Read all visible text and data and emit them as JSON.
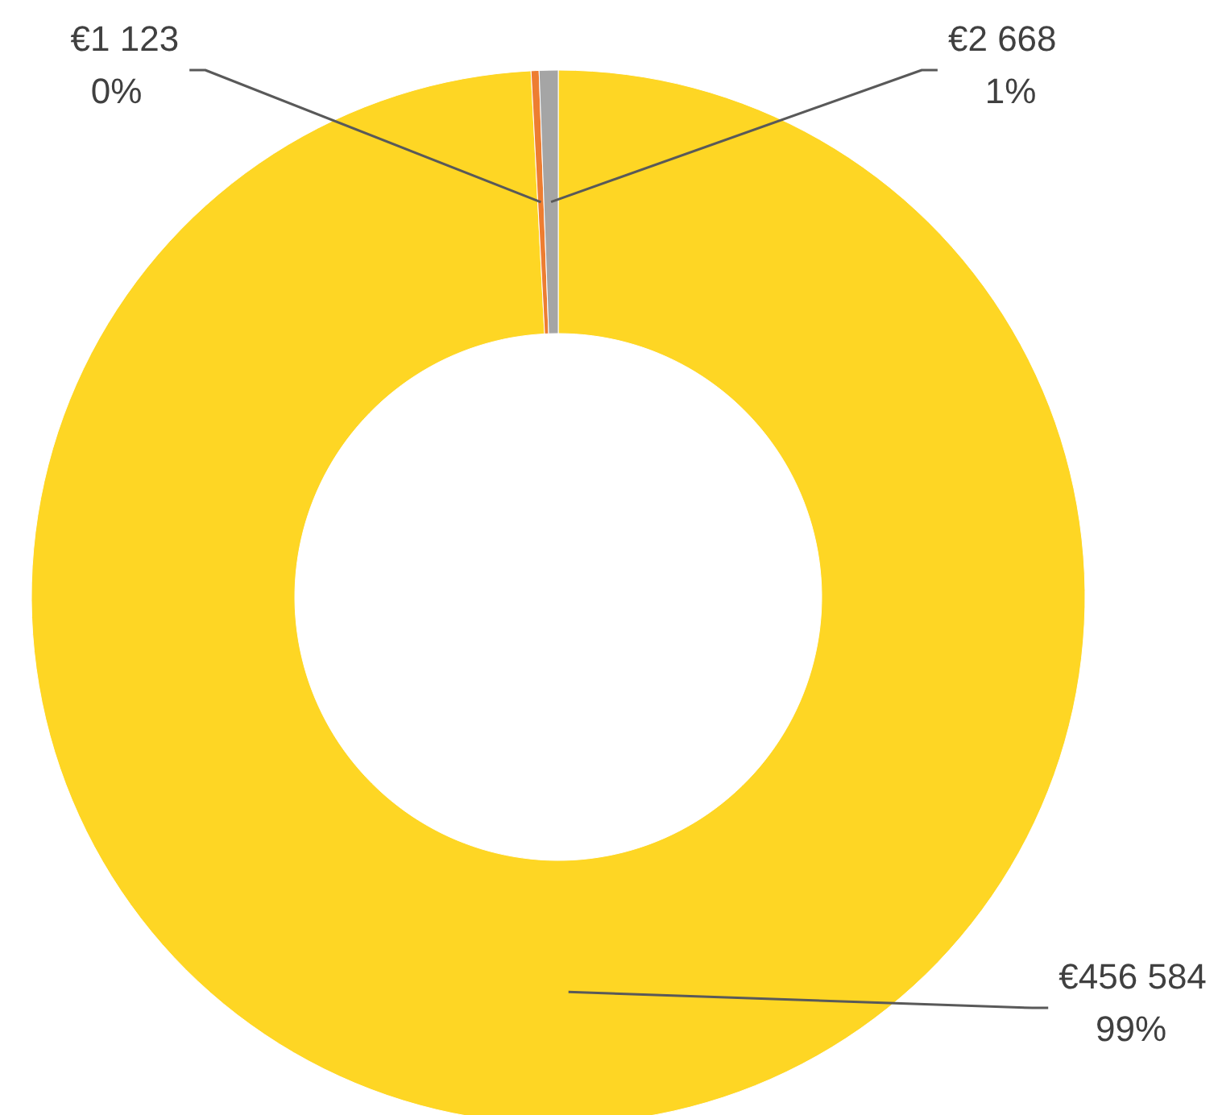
{
  "chart_data": {
    "type": "donut",
    "categories": [
      null,
      null,
      null
    ],
    "values": [
      456584,
      1123,
      2668
    ],
    "colors": [
      "#fed624",
      "#ed7d31",
      "#a5a5a5"
    ],
    "value_labels": [
      "€456 584\n99%",
      "€1 123\n0%",
      "€2 668\n1%"
    ]
  }
}
